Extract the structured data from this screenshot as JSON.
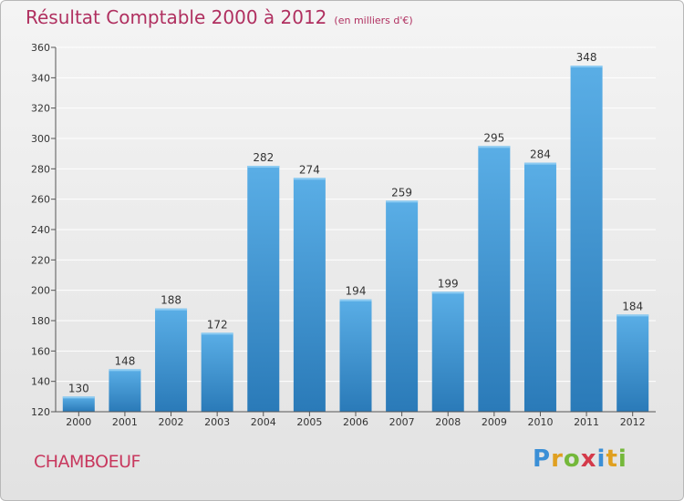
{
  "header": {
    "title": "Résultat Comptable 2000 à 2012",
    "unit": "(en milliers d'€)"
  },
  "town": "CHAMBOEUF",
  "logo": "Proxiti",
  "colors": {
    "title": "#b03060",
    "town": "#c8385e",
    "bar_top": "#5aaee6",
    "bar_bottom": "#2a7ab8",
    "grid": "#ffffff",
    "axis": "#555555"
  },
  "chart_data": {
    "type": "bar",
    "title": "Résultat Comptable 2000 à 2012",
    "subtitle": "(en milliers d'€)",
    "xlabel": "",
    "ylabel": "",
    "categories": [
      "2000",
      "2001",
      "2002",
      "2003",
      "2004",
      "2005",
      "2006",
      "2007",
      "2008",
      "2009",
      "2010",
      "2011",
      "2012"
    ],
    "values": [
      130,
      148,
      188,
      172,
      282,
      274,
      194,
      259,
      199,
      295,
      284,
      348,
      184
    ],
    "ylim": [
      120,
      360
    ],
    "yticks": [
      120,
      140,
      160,
      180,
      200,
      220,
      240,
      260,
      280,
      300,
      320,
      340,
      360
    ],
    "grid": true,
    "data_labels": true
  }
}
